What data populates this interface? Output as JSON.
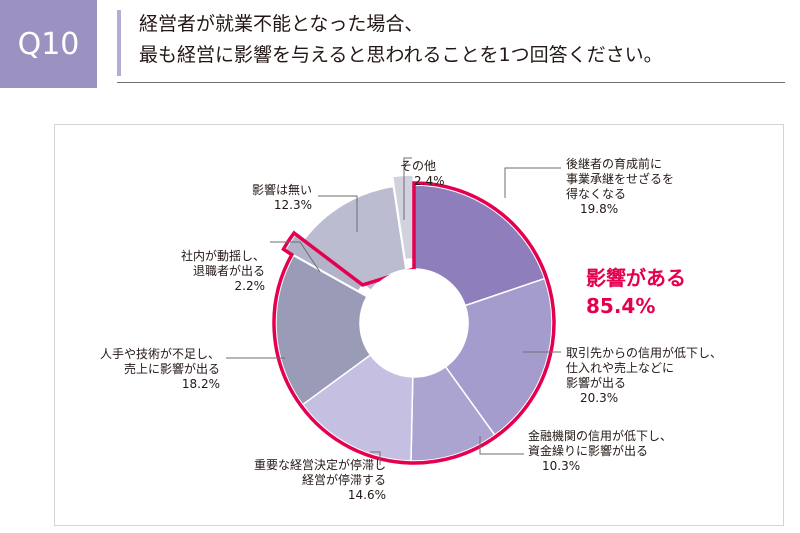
{
  "header": {
    "badge": "Q10",
    "question_lines": [
      "経営者が就業不能となった場合、",
      "最も経営に影響を与えると思われることを1つ回答ください。"
    ]
  },
  "chart_data": {
    "type": "pie",
    "donut": true,
    "start": "12 o'clock",
    "direction": "clockwise",
    "slices": [
      {
        "label_lines": [
          "後継者の育成前に",
          "事業承継をせざるを",
          "得なくなる"
        ],
        "value": 19.8,
        "value_text": "19.8%",
        "color": "#8e7fbc",
        "affected": true
      },
      {
        "label_lines": [
          "取引先からの信用が低下し、",
          "仕入れや売上などに",
          "影響が出る"
        ],
        "value": 20.3,
        "value_text": "20.3%",
        "color": "#a39ccd",
        "affected": true
      },
      {
        "label_lines": [
          "金融機関の信用が低下し、",
          "資金繰りに影響が出る"
        ],
        "value": 10.3,
        "value_text": "10.3%",
        "color": "#aba4d1",
        "affected": true
      },
      {
        "label_lines": [
          "重要な経営決定が停滞し",
          "経営が停滞する"
        ],
        "value": 14.6,
        "value_text": "14.6%",
        "color": "#c5c0e2",
        "affected": true
      },
      {
        "label_lines": [
          "人手や技術が不足し、",
          "売上に影響が出る"
        ],
        "value": 18.2,
        "value_text": "18.2%",
        "color": "#9a9bb6",
        "affected": true
      },
      {
        "label_lines": [
          "社内が動揺し、",
          "退職者が出る"
        ],
        "value": 2.2,
        "value_text": "2.2%",
        "color": "#b2b3c9",
        "affected": true
      },
      {
        "label_lines": [
          "影響は無い"
        ],
        "value": 12.3,
        "value_text": "12.3%",
        "color": "#bbbccf",
        "affected": false
      },
      {
        "label_lines": [
          "その他"
        ],
        "value": 2.4,
        "value_text": "2.4%",
        "color": "#d1d2dd",
        "affected": false
      }
    ],
    "highlight": {
      "label": "影響がある",
      "value": 85.4,
      "value_text": "85.4%",
      "color": "#e5004f"
    },
    "colors": {
      "separator": "#ffffff",
      "leader_line": "#6e6e6e"
    }
  }
}
